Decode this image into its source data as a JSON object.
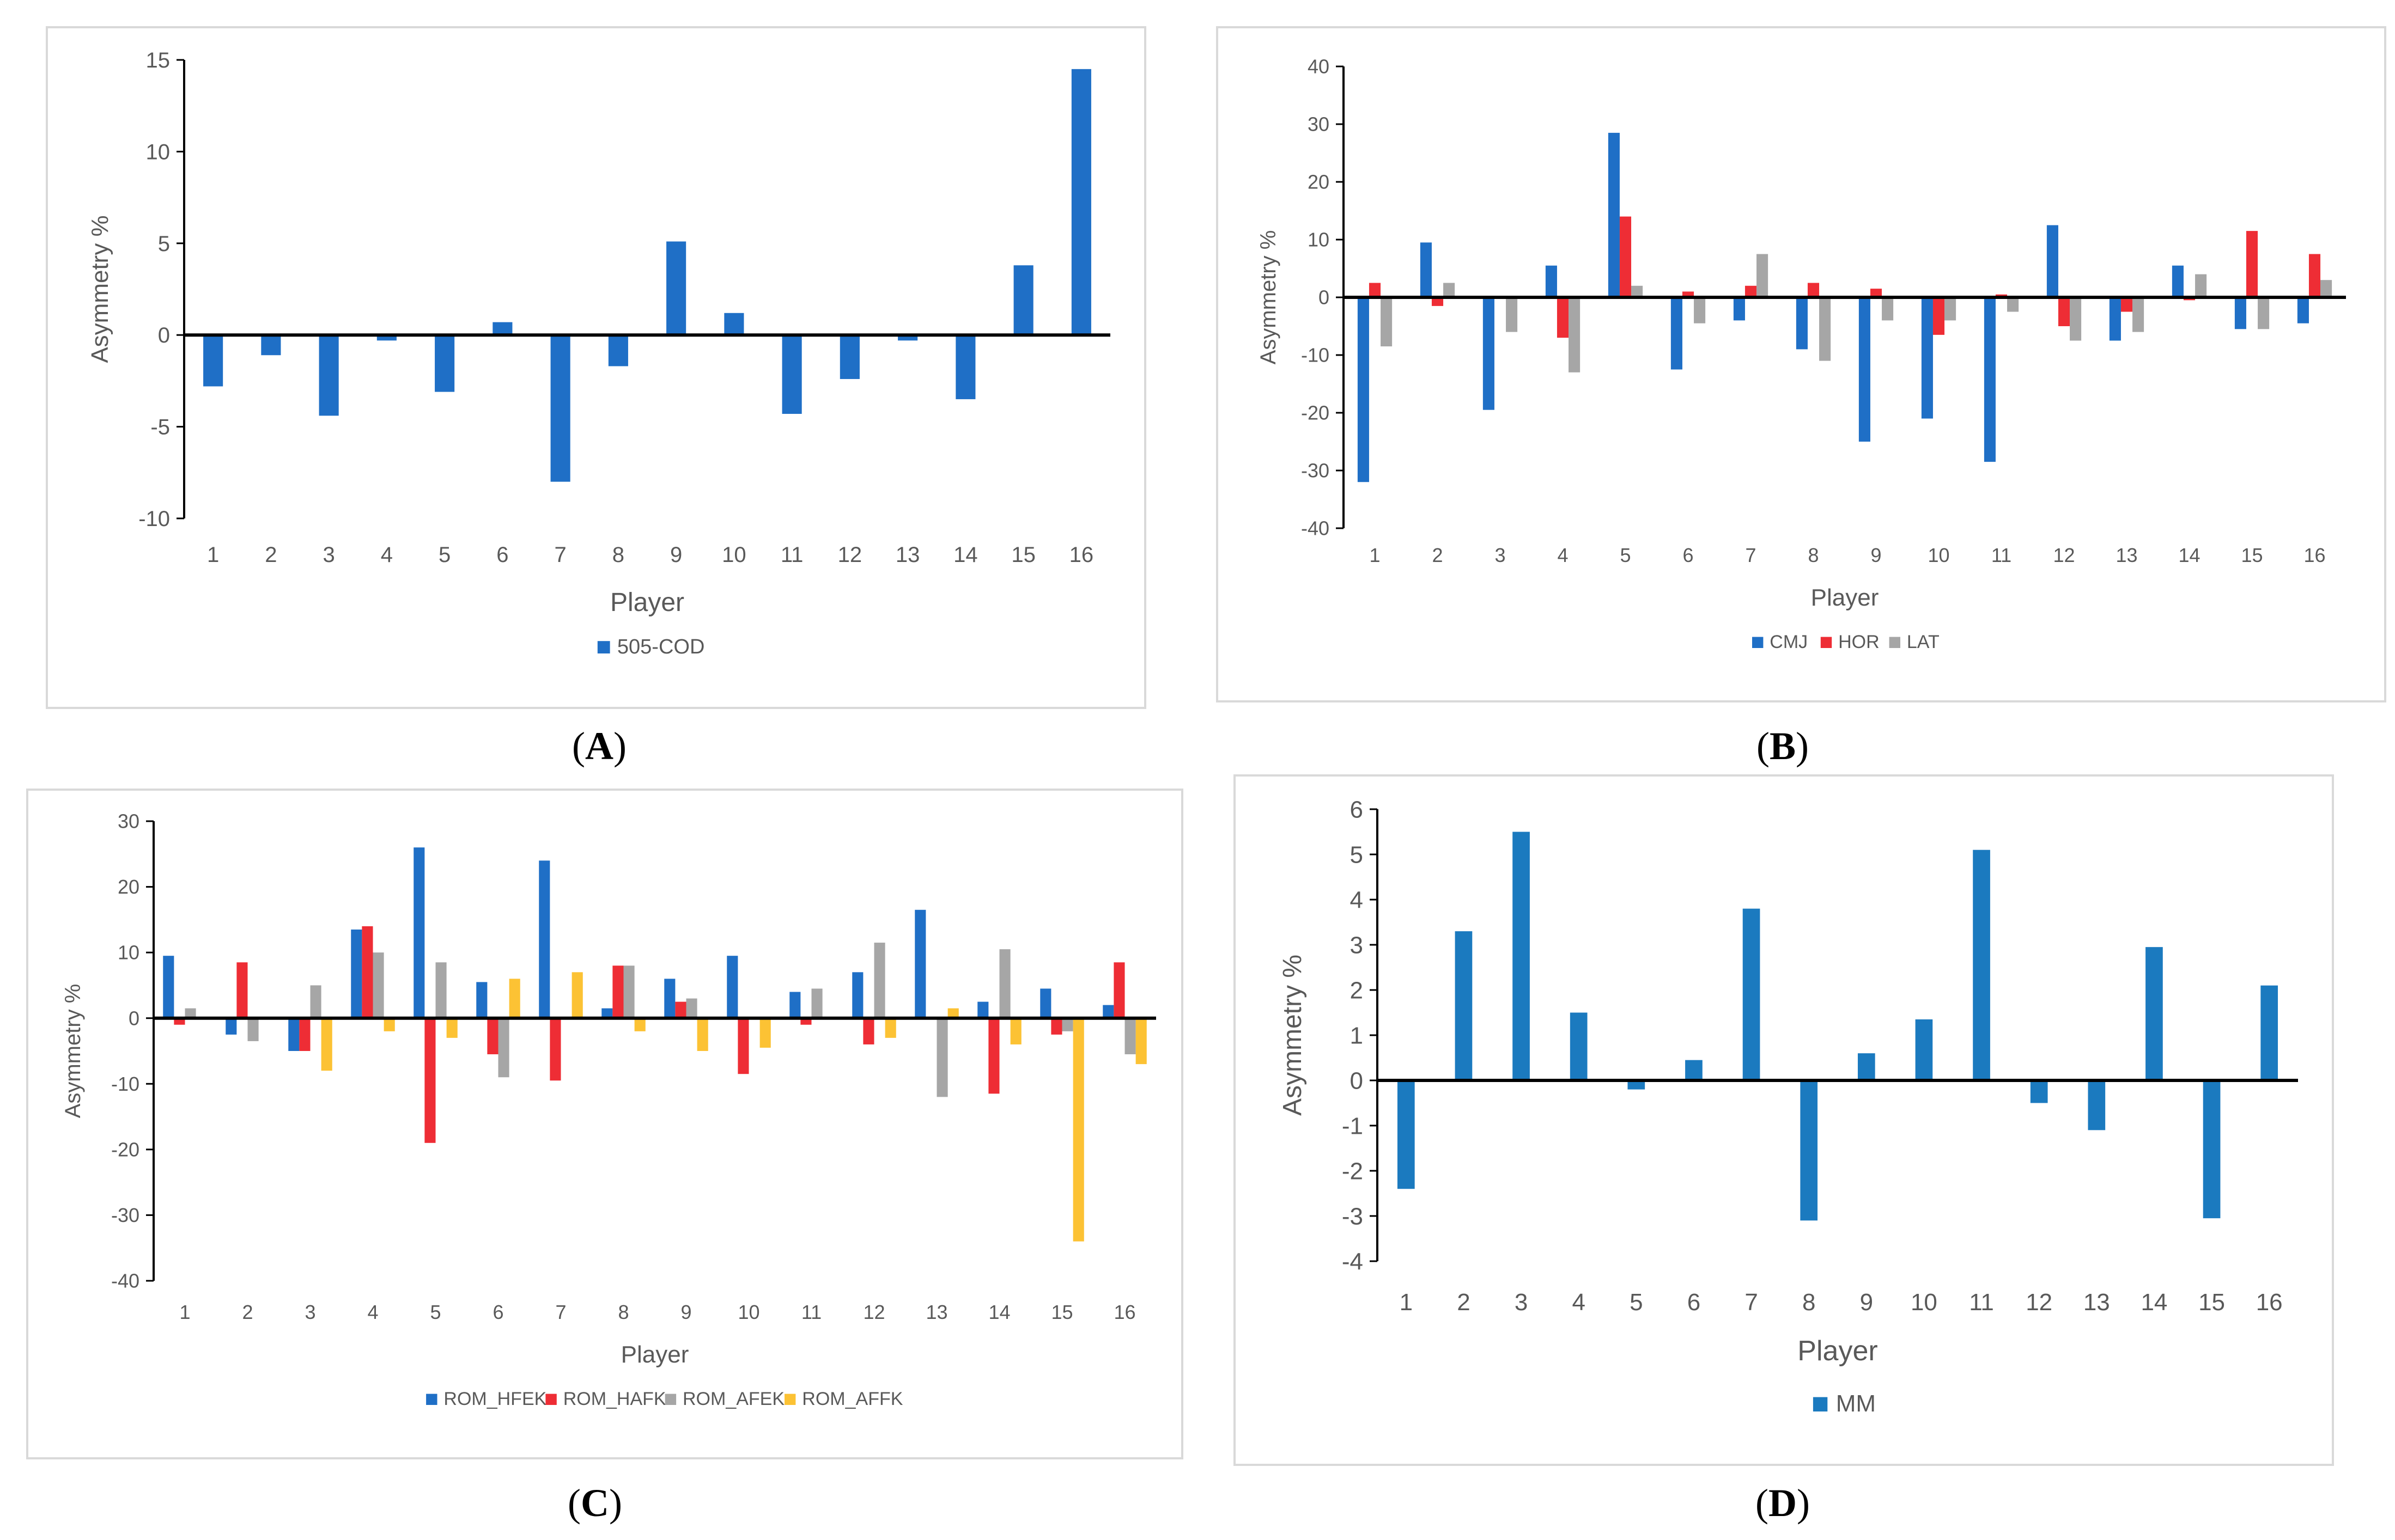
{
  "chart_data": [
    {
      "id": "A",
      "type": "bar",
      "caption": "A",
      "categories": [
        "1",
        "2",
        "3",
        "4",
        "5",
        "6",
        "7",
        "8",
        "9",
        "10",
        "11",
        "12",
        "13",
        "14",
        "15",
        "16"
      ],
      "series": [
        {
          "name": "505-COD",
          "color": "#1f6fc6",
          "values": [
            -2.8,
            -1.1,
            -4.4,
            -0.3,
            -3.1,
            0.7,
            -8.0,
            -1.7,
            5.1,
            1.2,
            -4.3,
            -2.4,
            -0.3,
            -3.5,
            3.8,
            14.5
          ]
        }
      ],
      "xlabel": "Player",
      "ylabel": "Asymmetry %",
      "ylim": [
        -10,
        15
      ],
      "yticks": [
        -10,
        -5,
        0,
        5,
        10,
        15
      ],
      "legend": "bottom"
    },
    {
      "id": "B",
      "type": "bar",
      "caption": "B",
      "categories": [
        "1",
        "2",
        "3",
        "4",
        "5",
        "6",
        "7",
        "8",
        "9",
        "10",
        "11",
        "12",
        "13",
        "14",
        "15",
        "16"
      ],
      "series": [
        {
          "name": "CMJ",
          "color": "#1f6fc6",
          "values": [
            -32,
            9.5,
            -19.5,
            5.5,
            28.5,
            -12.5,
            -4,
            -9,
            -25,
            -21,
            -28.5,
            12.5,
            -7.5,
            5.5,
            -5.5,
            -4.5
          ]
        },
        {
          "name": "HOR",
          "color": "#ee2d35",
          "values": [
            2.5,
            -1.5,
            0,
            -7,
            14,
            1,
            2,
            2.5,
            1.5,
            -6.5,
            0.5,
            -5,
            -2.5,
            -0.5,
            11.5,
            7.5
          ]
        },
        {
          "name": "LAT",
          "color": "#a6a6a6",
          "values": [
            -8.5,
            2.5,
            -6,
            -13,
            2,
            -4.5,
            7.5,
            -11,
            -4,
            -4,
            -2.5,
            -7.5,
            -6,
            4,
            -5.5,
            3
          ]
        }
      ],
      "xlabel": "Player",
      "ylabel": "Asymmetry %",
      "ylim": [
        -40,
        40
      ],
      "yticks": [
        -40,
        -30,
        -20,
        -10,
        0,
        10,
        20,
        30,
        40
      ],
      "legend": "bottom"
    },
    {
      "id": "C",
      "type": "bar",
      "caption": "C",
      "categories": [
        "1",
        "2",
        "3",
        "4",
        "5",
        "6",
        "7",
        "8",
        "9",
        "10",
        "11",
        "12",
        "13",
        "14",
        "15",
        "16"
      ],
      "series": [
        {
          "name": "ROM_HFEK",
          "color": "#1f6fc6",
          "values": [
            9.5,
            -2.5,
            -5,
            13.5,
            26,
            5.5,
            24,
            1.5,
            6,
            9.5,
            4,
            7,
            16.5,
            2.5,
            4.5,
            2
          ]
        },
        {
          "name": "ROM_HAFK",
          "color": "#ee2d35",
          "values": [
            -1,
            8.5,
            -5,
            14,
            -19,
            -5.5,
            -9.5,
            8,
            2.5,
            -8.5,
            -1,
            -4,
            0,
            -11.5,
            -2.5,
            8.5
          ]
        },
        {
          "name": "ROM_AFEK",
          "color": "#a6a6a6",
          "values": [
            1.5,
            -3.5,
            5,
            10,
            8.5,
            -9,
            0,
            8,
            3,
            0,
            4.5,
            11.5,
            -12,
            10.5,
            -2,
            -5.5
          ]
        },
        {
          "name": "ROM_AFFK",
          "color": "#fcc234",
          "values": [
            0,
            0,
            -8,
            -2,
            -3,
            6,
            7,
            -2,
            -5,
            -4.5,
            0,
            -3,
            1.5,
            -4,
            -34,
            -7
          ]
        }
      ],
      "xlabel": "Player",
      "ylabel": "Asymmetry %",
      "ylim": [
        -40,
        30
      ],
      "yticks": [
        -40,
        -30,
        -20,
        -10,
        0,
        10,
        20,
        30
      ],
      "legend": "bottom"
    },
    {
      "id": "D",
      "type": "bar",
      "caption": "D",
      "categories": [
        "1",
        "2",
        "3",
        "4",
        "5",
        "6",
        "7",
        "8",
        "9",
        "10",
        "11",
        "12",
        "13",
        "14",
        "15",
        "16"
      ],
      "series": [
        {
          "name": "MM",
          "color": "#1b7abf",
          "values": [
            -2.4,
            3.3,
            5.5,
            1.5,
            -0.2,
            0.45,
            3.8,
            -3.1,
            0.6,
            1.35,
            5.1,
            -0.5,
            -1.1,
            2.95,
            -3.05,
            2.1
          ]
        }
      ],
      "xlabel": "Player",
      "ylabel": "Asymmetry %",
      "ylim": [
        -4,
        6
      ],
      "yticks": [
        -4,
        -3,
        -2,
        -1,
        0,
        1,
        2,
        3,
        4,
        5,
        6
      ],
      "legend": "bottom"
    }
  ]
}
